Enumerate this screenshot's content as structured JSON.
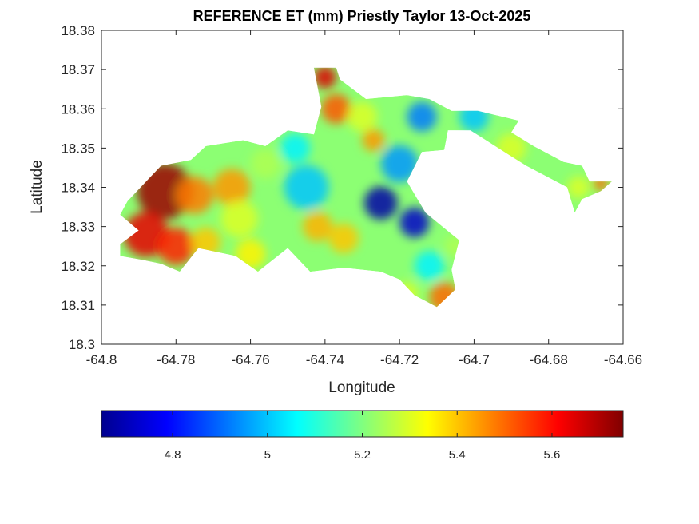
{
  "chart_data": {
    "type": "heatmap",
    "title": "REFERENCE ET (mm) Priestly Taylor 13-Oct-2025",
    "xlabel": "Longitude",
    "ylabel": "Latitude",
    "xlim": [
      -64.8,
      -64.66
    ],
    "ylim": [
      18.3,
      18.38
    ],
    "xticks": [
      -64.8,
      -64.78,
      -64.76,
      -64.74,
      -64.72,
      -64.7,
      -64.68,
      -64.66
    ],
    "xtick_labels": [
      "-64.8",
      "-64.78",
      "-64.76",
      "-64.74",
      "-64.72",
      "-64.7",
      "-64.68",
      "-64.66"
    ],
    "yticks": [
      18.3,
      18.31,
      18.32,
      18.33,
      18.34,
      18.35,
      18.36,
      18.37,
      18.38
    ],
    "ytick_labels": [
      "18.3",
      "18.31",
      "18.32",
      "18.33",
      "18.34",
      "18.35",
      "18.36",
      "18.37",
      "18.38"
    ],
    "colorbar": {
      "orientation": "horizontal",
      "placement": "bottom",
      "colormap": "jet",
      "range": [
        4.65,
        5.75
      ],
      "ticks": [
        4.8,
        5.0,
        5.2,
        5.4,
        5.6
      ],
      "tick_labels": [
        "4.8",
        "5",
        "5.2",
        "5.4",
        "5.6"
      ]
    },
    "hotspots": [
      {
        "lon": -64.783,
        "lat": 18.339,
        "value": 5.72,
        "r": 0.0075
      },
      {
        "lon": -64.788,
        "lat": 18.328,
        "value": 5.64,
        "r": 0.006
      },
      {
        "lon": -64.78,
        "lat": 18.325,
        "value": 5.58,
        "r": 0.005
      },
      {
        "lon": -64.775,
        "lat": 18.338,
        "value": 5.48,
        "r": 0.005
      },
      {
        "lon": -64.765,
        "lat": 18.34,
        "value": 5.45,
        "r": 0.005
      },
      {
        "lon": -64.772,
        "lat": 18.326,
        "value": 5.4,
        "r": 0.004
      },
      {
        "lon": -64.76,
        "lat": 18.323,
        "value": 5.35,
        "r": 0.004
      },
      {
        "lon": -64.763,
        "lat": 18.332,
        "value": 5.3,
        "r": 0.005
      },
      {
        "lon": -64.756,
        "lat": 18.346,
        "value": 5.25,
        "r": 0.004
      },
      {
        "lon": -64.745,
        "lat": 18.34,
        "value": 5.0,
        "r": 0.006
      },
      {
        "lon": -64.748,
        "lat": 18.35,
        "value": 5.05,
        "r": 0.004
      },
      {
        "lon": -64.742,
        "lat": 18.33,
        "value": 5.42,
        "r": 0.004
      },
      {
        "lon": -64.735,
        "lat": 18.327,
        "value": 5.4,
        "r": 0.004
      },
      {
        "lon": -64.74,
        "lat": 18.368,
        "value": 5.65,
        "r": 0.003
      },
      {
        "lon": -64.737,
        "lat": 18.36,
        "value": 5.52,
        "r": 0.004
      },
      {
        "lon": -64.73,
        "lat": 18.358,
        "value": 5.3,
        "r": 0.004
      },
      {
        "lon": -64.727,
        "lat": 18.352,
        "value": 5.45,
        "r": 0.003
      },
      {
        "lon": -64.725,
        "lat": 18.336,
        "value": 4.68,
        "r": 0.0045
      },
      {
        "lon": -64.716,
        "lat": 18.331,
        "value": 4.72,
        "r": 0.004
      },
      {
        "lon": -64.72,
        "lat": 18.346,
        "value": 4.95,
        "r": 0.005
      },
      {
        "lon": -64.714,
        "lat": 18.358,
        "value": 4.92,
        "r": 0.004
      },
      {
        "lon": -64.7,
        "lat": 18.358,
        "value": 5.0,
        "r": 0.004
      },
      {
        "lon": -64.712,
        "lat": 18.32,
        "value": 5.05,
        "r": 0.004
      },
      {
        "lon": -64.708,
        "lat": 18.312,
        "value": 5.5,
        "r": 0.004
      },
      {
        "lon": -64.718,
        "lat": 18.313,
        "value": 5.3,
        "r": 0.003
      },
      {
        "lon": -64.705,
        "lat": 18.325,
        "value": 5.25,
        "r": 0.003
      },
      {
        "lon": -64.69,
        "lat": 18.35,
        "value": 5.3,
        "r": 0.004
      },
      {
        "lon": -64.672,
        "lat": 18.34,
        "value": 5.3,
        "r": 0.003
      },
      {
        "lon": -64.666,
        "lat": 18.341,
        "value": 5.5,
        "r": 0.002
      }
    ],
    "region_lon_lat": [
      [
        -64.793,
        18.3365
      ],
      [
        -64.784,
        18.3455
      ],
      [
        -64.776,
        18.347
      ],
      [
        -64.772,
        18.3505
      ],
      [
        -64.762,
        18.352
      ],
      [
        -64.756,
        18.3505
      ],
      [
        -64.75,
        18.3545
      ],
      [
        -64.743,
        18.3535
      ],
      [
        -64.741,
        18.3605
      ],
      [
        -64.743,
        18.3705
      ],
      [
        -64.737,
        18.3705
      ],
      [
        -64.736,
        18.3675
      ],
      [
        -64.729,
        18.3625
      ],
      [
        -64.718,
        18.3635
      ],
      [
        -64.712,
        18.3625
      ],
      [
        -64.706,
        18.3595
      ],
      [
        -64.699,
        18.3595
      ],
      [
        -64.688,
        18.357
      ],
      [
        -64.69,
        18.354
      ],
      [
        -64.684,
        18.3505
      ],
      [
        -64.676,
        18.3465
      ],
      [
        -64.671,
        18.3455
      ],
      [
        -64.669,
        18.3415
      ],
      [
        -64.663,
        18.3415
      ],
      [
        -64.666,
        18.339
      ],
      [
        -64.671,
        18.337
      ],
      [
        -64.673,
        18.3335
      ],
      [
        -64.675,
        18.34
      ],
      [
        -64.686,
        18.3455
      ],
      [
        -64.701,
        18.3545
      ],
      [
        -64.707,
        18.3545
      ],
      [
        -64.708,
        18.3495
      ],
      [
        -64.714,
        18.349
      ],
      [
        -64.718,
        18.3415
      ],
      [
        -64.713,
        18.3335
      ],
      [
        -64.704,
        18.3265
      ],
      [
        -64.706,
        18.319
      ],
      [
        -64.705,
        18.314
      ],
      [
        -64.71,
        18.3095
      ],
      [
        -64.716,
        18.3125
      ],
      [
        -64.72,
        18.3165
      ],
      [
        -64.725,
        18.3185
      ],
      [
        -64.735,
        18.3195
      ],
      [
        -64.744,
        18.3185
      ],
      [
        -64.75,
        18.3245
      ],
      [
        -64.758,
        18.3185
      ],
      [
        -64.764,
        18.3225
      ],
      [
        -64.774,
        18.3245
      ],
      [
        -64.779,
        18.3185
      ],
      [
        -64.784,
        18.3205
      ],
      [
        -64.789,
        18.3215
      ],
      [
        -64.795,
        18.3225
      ],
      [
        -64.795,
        18.3255
      ],
      [
        -64.79,
        18.329
      ],
      [
        -64.795,
        18.333
      ]
    ]
  }
}
